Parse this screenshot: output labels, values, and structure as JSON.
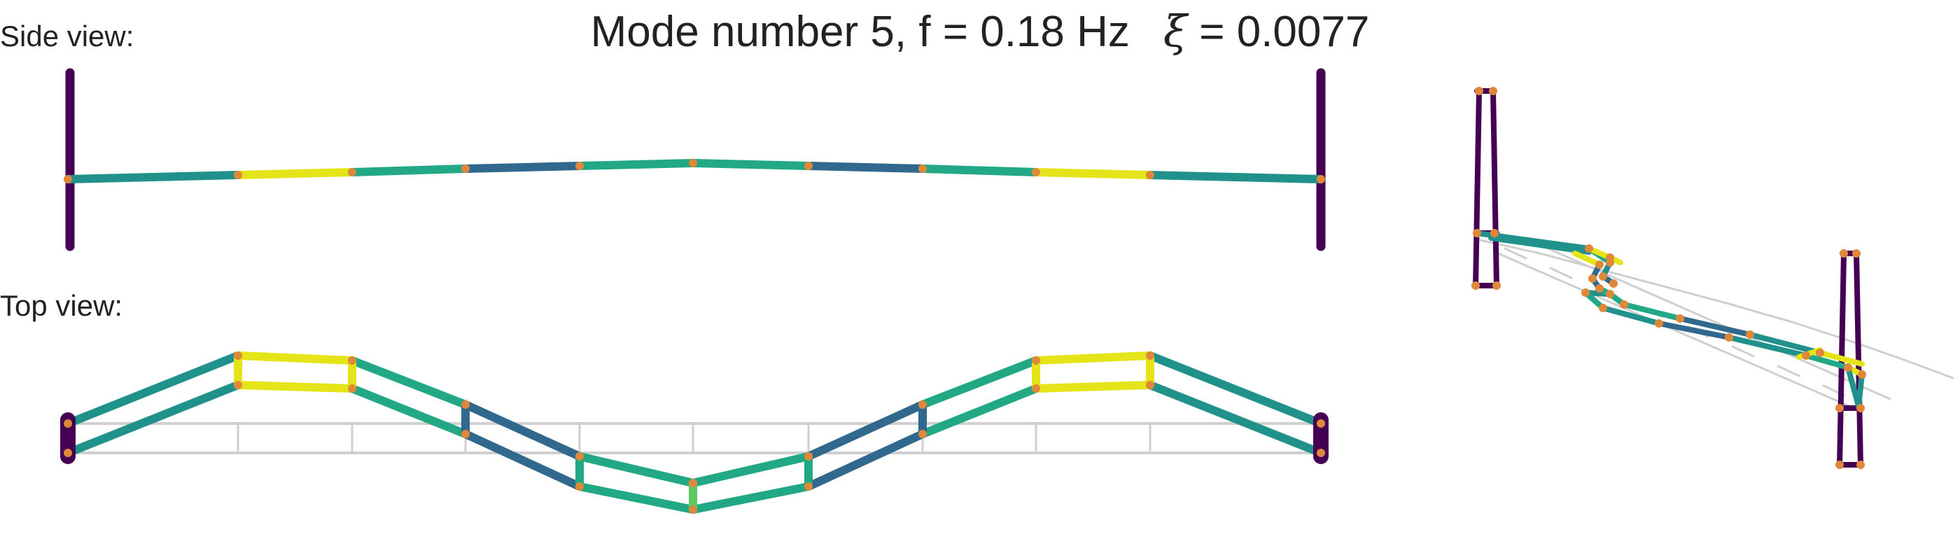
{
  "figure": {
    "title": {
      "prefix": "Mode number 5, f = 0.18 Hz",
      "xi_symbol": "ξ",
      "xi_value": "= 0.0077"
    },
    "side_label": "Side view:",
    "top_label": "Top view:"
  },
  "colors": {
    "tower": "#440154",
    "yellow": "#e5e419",
    "teal": "#21918c",
    "blue": "#31688e",
    "green": "#22a884",
    "lightgreen": "#5ec962",
    "grid": "#cfcfcf",
    "node": "#e0883a"
  }
}
